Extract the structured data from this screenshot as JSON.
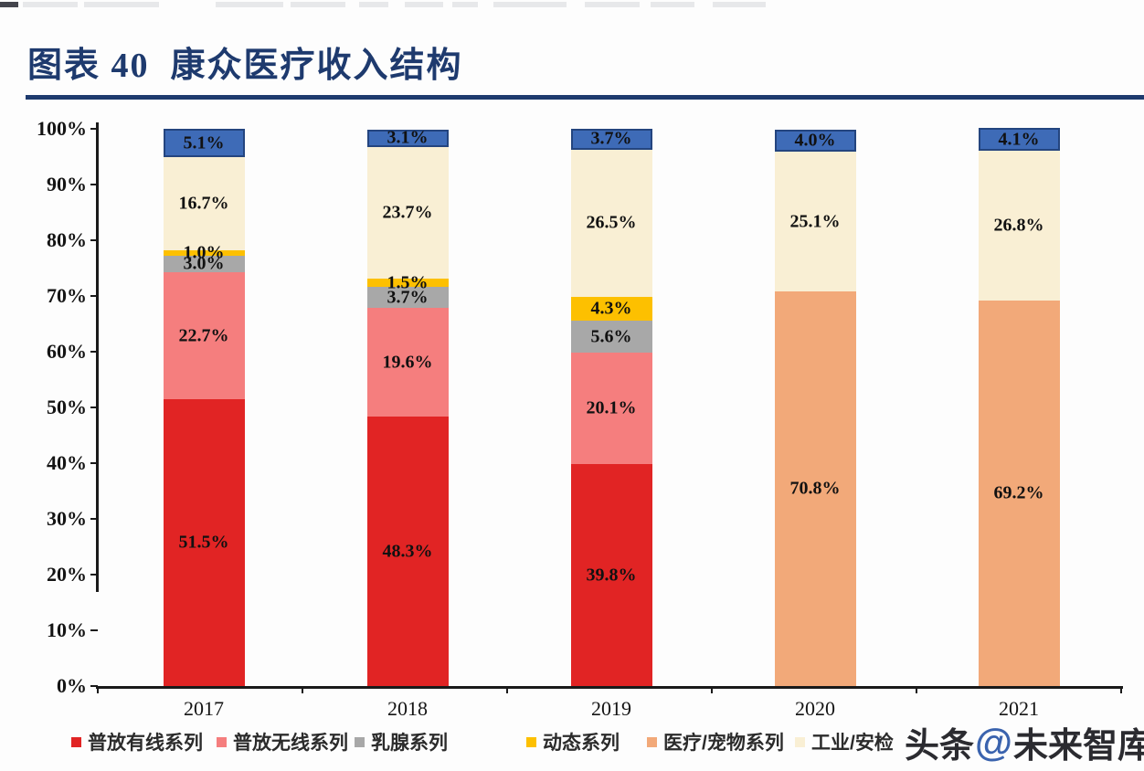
{
  "header": {
    "title": "图表 40  康众医疗收入结构"
  },
  "chart_data": {
    "type": "bar",
    "stacked": true,
    "unit": "%",
    "title": "康众医疗收入结构",
    "categories": [
      "2017",
      "2018",
      "2019",
      "2020",
      "2021"
    ],
    "series": [
      {
        "name": "普放有线系列",
        "color": "#e12424",
        "values": [
          51.5,
          48.3,
          39.8,
          null,
          null
        ]
      },
      {
        "name": "普放无线系列",
        "color": "#f57e7e",
        "values": [
          22.7,
          19.6,
          20.1,
          null,
          null
        ]
      },
      {
        "name": "乳腺系列",
        "color": "#a8a8a8",
        "values": [
          3.0,
          3.7,
          5.6,
          null,
          null
        ]
      },
      {
        "name": "动态系列",
        "color": "#fdc000",
        "values": [
          1.0,
          1.5,
          4.3,
          null,
          null
        ]
      },
      {
        "name": "医疗/宠物系列",
        "color": "#f2a979",
        "values": [
          null,
          null,
          null,
          70.8,
          69.2
        ]
      },
      {
        "name": "工业/安检",
        "color": "#f9efd4",
        "values": [
          16.7,
          23.7,
          26.5,
          25.1,
          26.8
        ]
      },
      {
        "name": "",
        "color": "#3e6bb7",
        "border": "#24457f",
        "values": [
          5.1,
          3.1,
          3.7,
          4.0,
          4.1
        ]
      }
    ],
    "y_ticks": [
      "0%",
      "10%",
      "20%",
      "30%",
      "40%",
      "50%",
      "60%",
      "70%",
      "80%",
      "90%",
      "100%"
    ],
    "ylim": [
      0,
      100
    ],
    "grid": false,
    "legend_position": "bottom",
    "data_label_format": "0.0%"
  },
  "legend": {
    "items": [
      {
        "label": "普放有线系列",
        "color": "#e12424"
      },
      {
        "label": "普放无线系列",
        "color": "#f57e7e"
      },
      {
        "label": "乳腺系列",
        "color": "#a8a8a8"
      },
      {
        "label": "动态系列",
        "color": "#fdc000"
      },
      {
        "label": "医疗/宠物系列",
        "color": "#f2a979"
      },
      {
        "label": "工业/安检",
        "color": "#f9efd4"
      }
    ]
  },
  "watermark": {
    "prefix": "头条",
    "at": "@",
    "suffix": "未来智库"
  }
}
